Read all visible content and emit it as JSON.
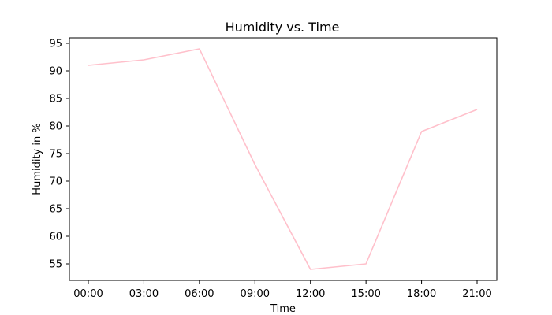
{
  "chart_data": {
    "type": "line",
    "title": "Humidity vs. Time",
    "xlabel": "Time",
    "ylabel": "Humidity in %",
    "categories": [
      "00:00",
      "03:00",
      "06:00",
      "09:00",
      "12:00",
      "15:00",
      "18:00",
      "21:00"
    ],
    "series": [
      {
        "values": [
          91,
          92,
          94,
          73,
          54,
          55,
          79,
          83
        ],
        "color": "#ffc0cb"
      }
    ],
    "yticks": [
      55,
      60,
      65,
      70,
      75,
      80,
      85,
      90,
      95
    ],
    "ylim": [
      52.0,
      96.0
    ],
    "grid": false,
    "legend": "none"
  }
}
